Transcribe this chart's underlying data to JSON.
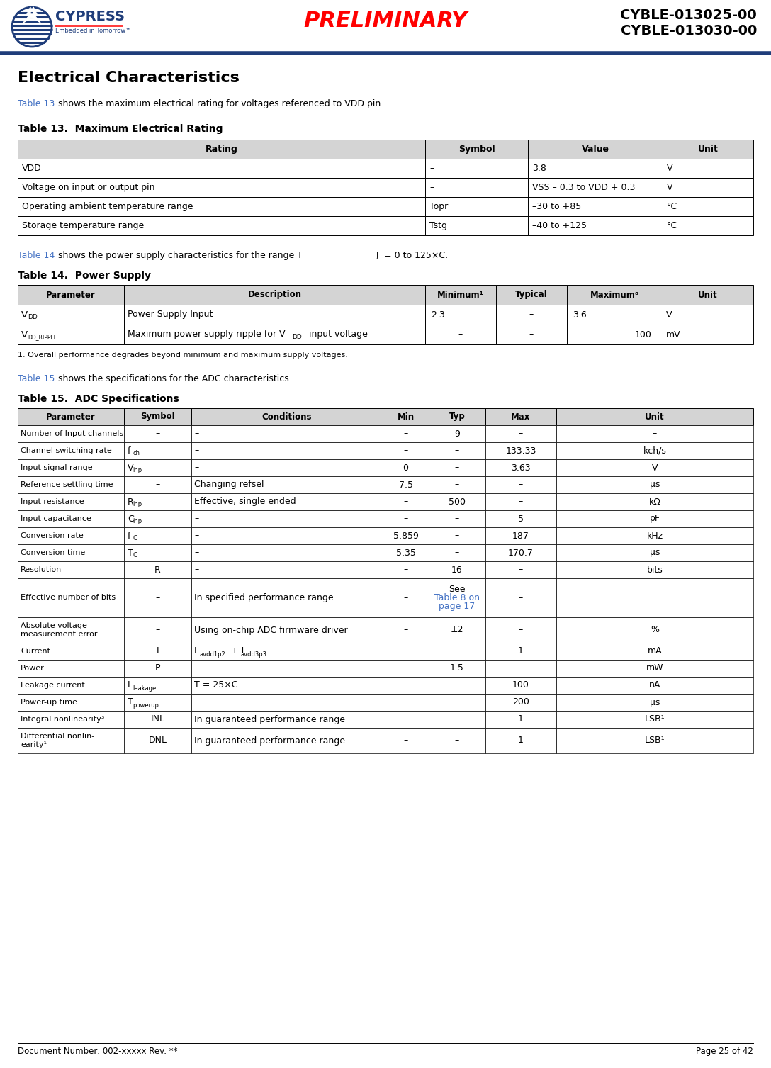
{
  "header_preliminary": "PRELIMINARY",
  "header_model1": "CYBLE-013025-00",
  "header_model2": "CYBLE-013030-00",
  "section_title": "Electrical Characteristics",
  "table13_title": "Table 13.  Maximum Electrical Rating",
  "table13_headers": [
    "Rating",
    "Symbol",
    "Value",
    "Unit"
  ],
  "table13_rows": [
    [
      "VDD",
      "–",
      "3.8",
      "V"
    ],
    [
      "Voltage on input or output pin",
      "–",
      "VSS – 0.3 to VDD + 0.3",
      "V"
    ],
    [
      "Operating ambient temperature range",
      "Topr",
      "–30 to +85",
      "°C"
    ],
    [
      "Storage temperature range",
      "Tstg",
      "–40 to +125",
      "°C"
    ]
  ],
  "table14_title": "Table 14.  Power Supply",
  "table14_headers": [
    "Parameter",
    "Description",
    "Minimum¹",
    "Typical",
    "Maximumᵃ",
    "Unit"
  ],
  "footnote14": "1. Overall performance degrades beyond minimum and maximum supply voltages.",
  "table15_title": "Table 15.  ADC Specifications",
  "table15_headers": [
    "Parameter",
    "Symbol",
    "Conditions",
    "Min",
    "Typ",
    "Max",
    "Unit"
  ],
  "footer_left": "Document Number: 002-xxxxx Rev. **",
  "footer_right": "Page 25 of 42"
}
